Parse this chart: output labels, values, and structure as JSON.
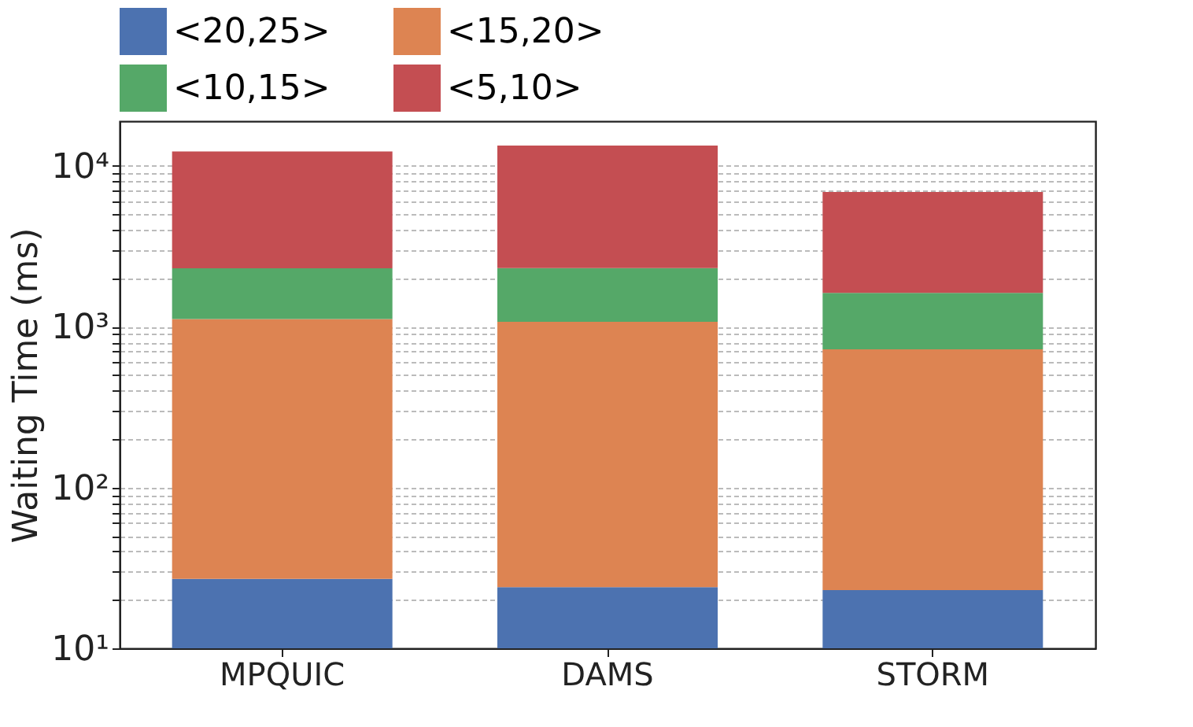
{
  "chart_data": {
    "type": "bar",
    "stacked": true,
    "log": "y",
    "grid": "y",
    "legend": "top",
    "ylabel": "Waiting Time (ms)",
    "categories": [
      "MPQUIC",
      "DAMS",
      "STORM"
    ],
    "series": [
      {
        "name": "<20,25>",
        "color": "#4c72b0",
        "values": [
          27,
          24,
          23
        ]
      },
      {
        "name": "<15,20>",
        "color": "#dd8452",
        "values": [
          1090,
          1050,
          700
        ]
      },
      {
        "name": "<10,15>",
        "color": "#55a868",
        "values": [
          1190,
          1240,
          900
        ]
      },
      {
        "name": "<5,10>",
        "color": "#c44e52",
        "values": [
          10000,
          11100,
          5260
        ]
      }
    ],
    "ylim": [
      10,
      19000
    ],
    "yticks": [
      {
        "value": 10,
        "label": "10¹"
      },
      {
        "value": 20,
        "label": null
      },
      {
        "value": 30,
        "label": null
      },
      {
        "value": 40,
        "label": null
      },
      {
        "value": 50,
        "label": null
      },
      {
        "value": 60,
        "label": null
      },
      {
        "value": 70,
        "label": null
      },
      {
        "value": 80,
        "label": null
      },
      {
        "value": 90,
        "label": null
      },
      {
        "value": 100,
        "label": "10²"
      },
      {
        "value": 200,
        "label": null
      },
      {
        "value": 300,
        "label": null
      },
      {
        "value": 400,
        "label": null
      },
      {
        "value": 500,
        "label": null
      },
      {
        "value": 600,
        "label": null
      },
      {
        "value": 700,
        "label": null
      },
      {
        "value": 800,
        "label": null
      },
      {
        "value": 900,
        "label": null
      },
      {
        "value": 1000,
        "label": "10³"
      },
      {
        "value": 2000,
        "label": null
      },
      {
        "value": 3000,
        "label": null
      },
      {
        "value": 4000,
        "label": null
      },
      {
        "value": 5000,
        "label": null
      },
      {
        "value": 6000,
        "label": null
      },
      {
        "value": 7000,
        "label": null
      },
      {
        "value": 8000,
        "label": null
      },
      {
        "value": 9000,
        "label": null
      },
      {
        "value": 10000,
        "label": "10⁴"
      }
    ]
  }
}
